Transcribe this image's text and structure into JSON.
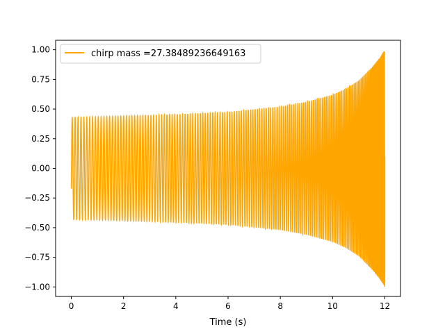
{
  "chart_data": {
    "type": "line",
    "title": "",
    "xlabel": "Time (s)",
    "ylabel": "",
    "xlim": [
      -0.6,
      12.6
    ],
    "ylim": [
      -1.08,
      1.08
    ],
    "xticks": [
      0,
      2,
      4,
      6,
      8,
      10,
      12
    ],
    "yticks": [
      -1.0,
      -0.75,
      -0.5,
      -0.25,
      0.0,
      0.25,
      0.5,
      0.75,
      1.0
    ],
    "xtick_labels": [
      "0",
      "2",
      "4",
      "6",
      "8",
      "10",
      "12"
    ],
    "ytick_labels": [
      "−1.00",
      "−0.75",
      "−0.50",
      "−0.25",
      "0.00",
      "0.25",
      "0.50",
      "0.75",
      "1.00"
    ],
    "grid": false,
    "legend_position": "top-left",
    "series": [
      {
        "name": "chirp mass =27.38489236649163",
        "color": "#ffa500",
        "t_start": 0.0,
        "t_end": 12.0,
        "envelope": {
          "t": [
            0,
            2,
            4,
            6,
            8,
            9,
            10,
            10.5,
            11,
            11.5,
            11.8,
            12.0
          ],
          "amplitude": [
            0.43,
            0.44,
            0.455,
            0.475,
            0.52,
            0.56,
            0.62,
            0.67,
            0.74,
            0.85,
            0.93,
            1.0
          ]
        },
        "initial_value": -0.17,
        "final_value": 0.1,
        "approx_cycles": 150
      }
    ]
  }
}
